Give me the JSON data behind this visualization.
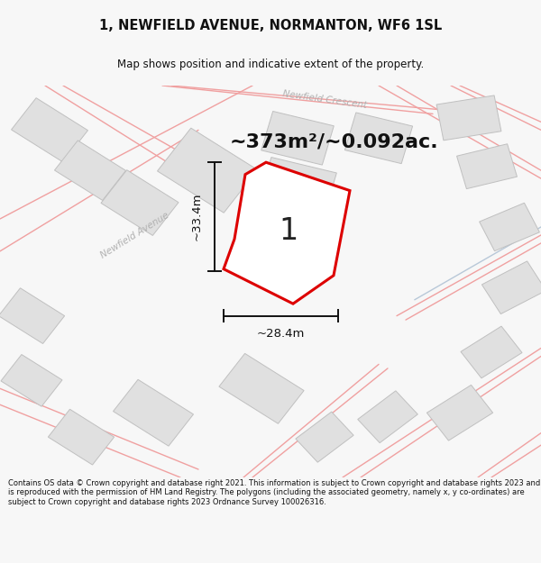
{
  "title": "1, NEWFIELD AVENUE, NORMANTON, WF6 1SL",
  "subtitle": "Map shows position and indicative extent of the property.",
  "area_text": "~373m²/~0.092ac.",
  "dim_width": "~28.4m",
  "dim_height": "~33.4m",
  "plot_label": "1",
  "footer": "Contains OS data © Crown copyright and database right 2021. This information is subject to Crown copyright and database rights 2023 and is reproduced with the permission of HM Land Registry. The polygons (including the associated geometry, namely x, y co-ordinates) are subject to Crown copyright and database rights 2023 Ordnance Survey 100026316.",
  "bg_color": "#f7f7f7",
  "map_bg": "#f9f9f9",
  "plot_fill": "#ffffff",
  "plot_edge": "#dd0000",
  "road_color": "#f0a0a0",
  "road_color2": "#c8d0e0",
  "building_fill": "#e0e0e0",
  "building_edge": "#c0c0c0",
  "dim_line_color": "#111111",
  "street_text_color": "#b0b0b0",
  "title_color": "#111111",
  "footer_color": "#111111",
  "map_border_color": "#cccccc"
}
